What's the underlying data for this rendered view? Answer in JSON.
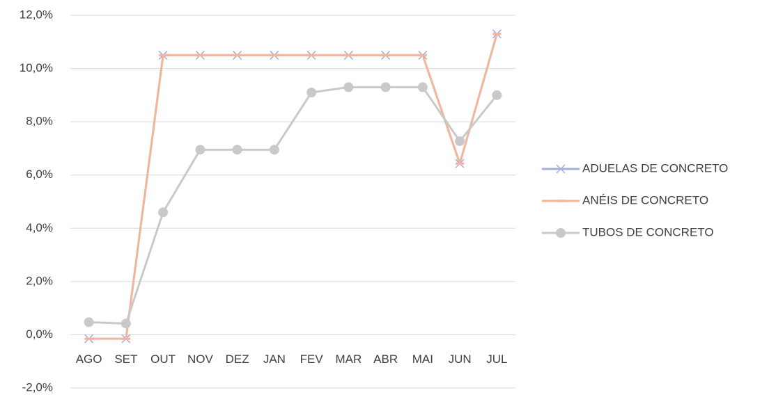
{
  "chart_data": {
    "type": "line",
    "categories": [
      "AGO",
      "SET",
      "OUT",
      "NOV",
      "DEZ",
      "JAN",
      "FEV",
      "MAR",
      "ABR",
      "MAI",
      "JUN",
      "JUL"
    ],
    "series": [
      {
        "name": "ADUELAS DE CONCRETO",
        "color": "#9fb0de",
        "marker": "x",
        "values": [
          -0.15,
          -0.15,
          10.5,
          10.5,
          10.5,
          10.5,
          10.5,
          10.5,
          10.5,
          10.5,
          6.43,
          11.3
        ]
      },
      {
        "name": "ANÉIS DE CONCRETO",
        "color": "#f4b69b",
        "marker": "dash",
        "values": [
          -0.15,
          -0.15,
          10.5,
          10.5,
          10.5,
          10.5,
          10.5,
          10.5,
          10.5,
          10.5,
          6.43,
          11.3
        ]
      },
      {
        "name": "TUBOS DE CONCRETO",
        "color": "#c9c9c9",
        "marker": "circle",
        "values": [
          0.47,
          0.42,
          4.6,
          6.95,
          6.95,
          6.95,
          9.1,
          9.3,
          9.3,
          9.3,
          7.27,
          9.0
        ]
      }
    ],
    "ylim": [
      -2,
      12
    ],
    "yticks": [
      {
        "value": -2,
        "label": "-2,0%"
      },
      {
        "value": 0,
        "label": "0,0%"
      },
      {
        "value": 2,
        "label": "2,0%"
      },
      {
        "value": 4,
        "label": "4,0%"
      },
      {
        "value": 6,
        "label": "6,0%"
      },
      {
        "value": 8,
        "label": "8,0%"
      },
      {
        "value": 10,
        "label": "10,0%"
      },
      {
        "value": 12,
        "label": "12,0%"
      }
    ],
    "grid": true,
    "legend": "right"
  }
}
